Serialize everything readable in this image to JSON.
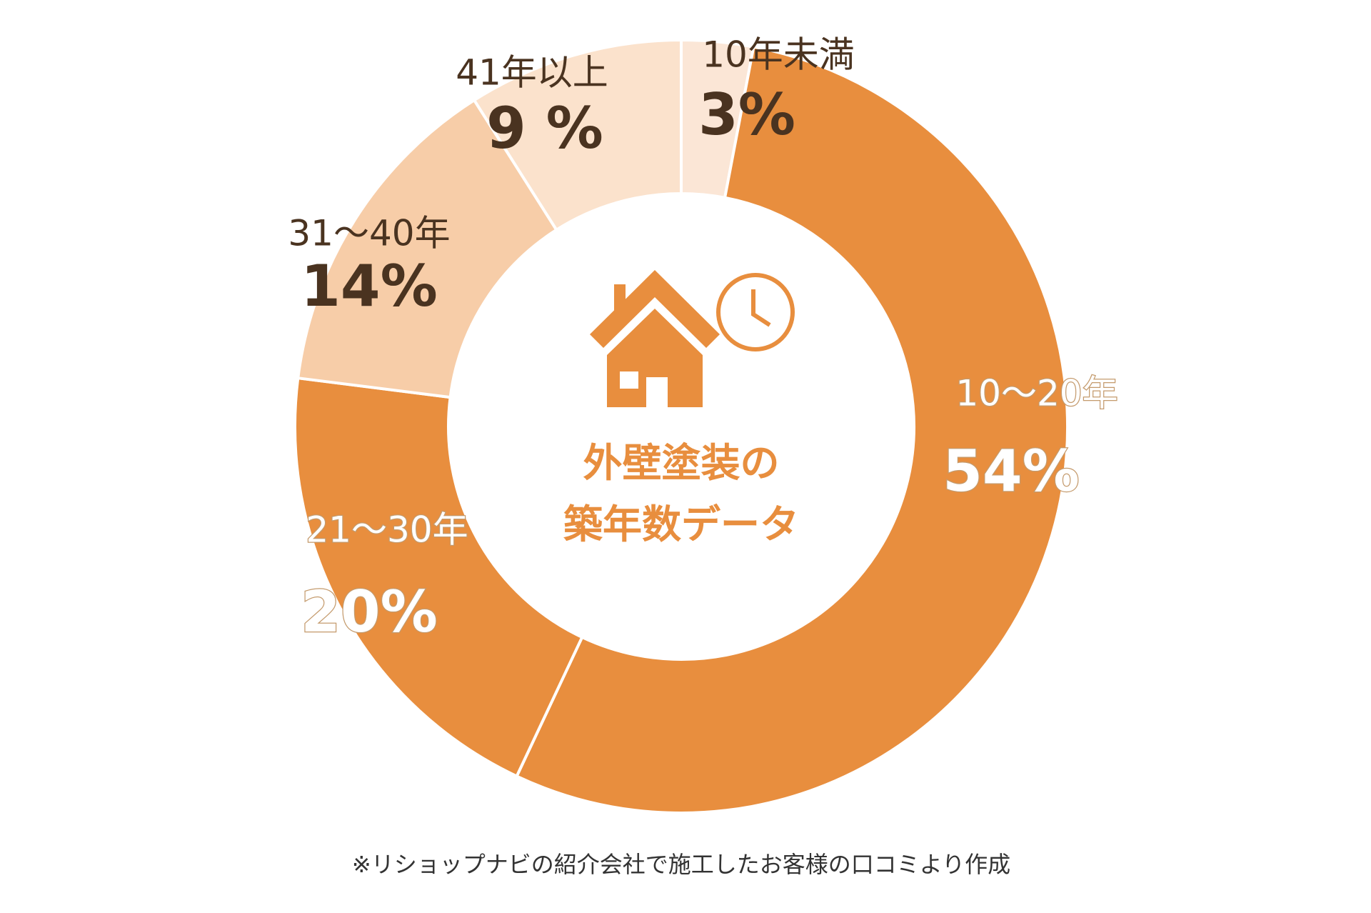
{
  "chart_data": {
    "type": "donut",
    "title": [
      "外壁塗装の",
      "築年数データ"
    ],
    "categories": [
      "10年未満",
      "10～20年",
      "21～30年",
      "31～40年",
      "41年以上"
    ],
    "values": [
      3,
      54,
      20,
      14,
      9
    ],
    "value_labels": [
      "3%",
      "54%",
      "20%",
      "14%",
      "9 %"
    ],
    "colors": [
      "#fbe6d6",
      "#e88e3e",
      "#e88e3e",
      "#f7cda8",
      "#fbe2cc"
    ],
    "note": "※リショップナビの紹介会社で施工したお客様の口コミより作成"
  }
}
